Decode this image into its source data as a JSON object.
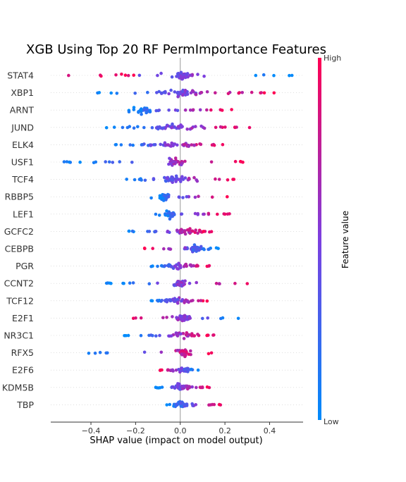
{
  "chart_data": {
    "type": "scatter",
    "subtype": "shap-beeswarm",
    "title": "XGB Using Top 20 RF PermImportance Features",
    "xlabel": "SHAP value (impact on model output)",
    "xlim": [
      -0.58,
      0.55
    ],
    "xticks": [
      -0.4,
      -0.2,
      0.0,
      0.2,
      0.4
    ],
    "xtick_labels": [
      "−0.4",
      "−0.2",
      "0.0",
      "0.2",
      "0.4"
    ],
    "colorbar": {
      "label": "Feature value",
      "high": "High",
      "low": "Low",
      "low_color": "#008bfb",
      "mid_color": "#7c3fe0",
      "high_color": "#ff0052"
    },
    "zero_line": true,
    "grid": false,
    "features": [
      {
        "name": "STAT4",
        "min": -0.5,
        "max": 0.5,
        "core": [
          -0.02,
          0.05
        ],
        "low_side": "both",
        "density": 52
      },
      {
        "name": "XBP1",
        "min": -0.37,
        "max": 0.42,
        "core": [
          -0.1,
          0.1
        ],
        "low_side": "left",
        "density": 58
      },
      {
        "name": "ARNT",
        "min": -0.23,
        "max": 0.23,
        "core": [
          -0.2,
          -0.12
        ],
        "low_side": "left",
        "density": 48
      },
      {
        "name": "JUND",
        "min": -0.33,
        "max": 0.31,
        "core": [
          -0.12,
          0.05
        ],
        "low_side": "left",
        "density": 54
      },
      {
        "name": "ELK4",
        "min": -0.29,
        "max": 0.19,
        "core": [
          -0.18,
          0.15
        ],
        "low_side": "left",
        "density": 56
      },
      {
        "name": "USF1",
        "min": -0.52,
        "max": 0.28,
        "core": [
          -0.06,
          0.02
        ],
        "low_side": "left",
        "density": 46
      },
      {
        "name": "TCF4",
        "min": -0.24,
        "max": 0.24,
        "core": [
          -0.08,
          0.05
        ],
        "low_side": "left",
        "density": 48
      },
      {
        "name": "RBBP5",
        "min": -0.13,
        "max": 0.21,
        "core": [
          -0.08,
          -0.06
        ],
        "low_side": "left",
        "density": 44
      },
      {
        "name": "LEF1",
        "min": -0.11,
        "max": 0.22,
        "core": [
          -0.08,
          -0.02
        ],
        "low_side": "left",
        "density": 46
      },
      {
        "name": "GCFC2",
        "min": -0.23,
        "max": 0.14,
        "core": [
          -0.02,
          0.1
        ],
        "low_side": "left",
        "density": 50
      },
      {
        "name": "CEBPB",
        "min": -0.16,
        "max": 0.17,
        "core": [
          0.02,
          0.1
        ],
        "low_side": "right",
        "density": 50
      },
      {
        "name": "PGR",
        "min": -0.13,
        "max": 0.13,
        "core": [
          -0.08,
          0.06
        ],
        "low_side": "left",
        "density": 44
      },
      {
        "name": "CCNT2",
        "min": -0.33,
        "max": 0.3,
        "core": [
          -0.03,
          0.02
        ],
        "low_side": "left",
        "density": 50
      },
      {
        "name": "TCF12",
        "min": -0.13,
        "max": 0.12,
        "core": [
          -0.06,
          0.05
        ],
        "low_side": "left",
        "density": 46
      },
      {
        "name": "E2F1",
        "min": -0.21,
        "max": 0.26,
        "core": [
          -0.01,
          0.05
        ],
        "low_side": "right",
        "density": 48
      },
      {
        "name": "NR3C1",
        "min": -0.25,
        "max": 0.15,
        "core": [
          -0.04,
          0.06
        ],
        "low_side": "left",
        "density": 44
      },
      {
        "name": "RFX5",
        "min": -0.41,
        "max": 0.14,
        "core": [
          -0.02,
          0.04
        ],
        "low_side": "left",
        "density": 44
      },
      {
        "name": "E2F6",
        "min": -0.09,
        "max": 0.08,
        "core": [
          -0.02,
          0.06
        ],
        "low_side": "right",
        "density": 40
      },
      {
        "name": "KDM5B",
        "min": -0.11,
        "max": 0.13,
        "core": [
          -0.05,
          0.05
        ],
        "low_side": "left",
        "density": 44
      },
      {
        "name": "TBP",
        "min": -0.06,
        "max": 0.18,
        "core": [
          -0.04,
          0.04
        ],
        "low_side": "left",
        "density": 42
      }
    ]
  }
}
